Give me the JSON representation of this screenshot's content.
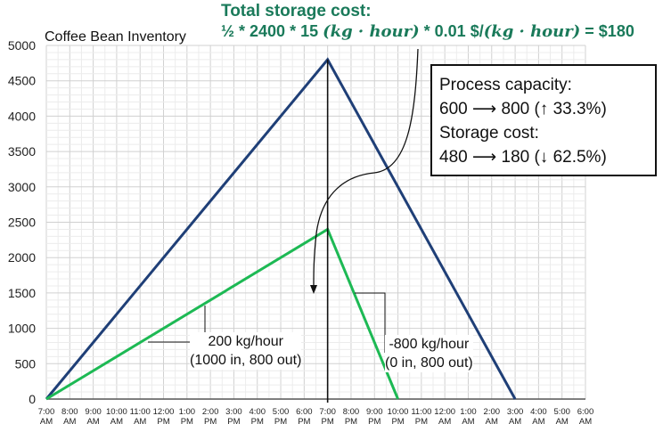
{
  "heading": {
    "title": "Total storage cost:",
    "formula_start": "½ * 2400 * 15 ",
    "formula_unit1": "(kg · hour)",
    "formula_mid": " * 0.01 $/",
    "formula_unit2": "(kg · hour)",
    "formula_end": " = $180"
  },
  "infobox": {
    "line1": "Process capacity:",
    "line2": "600 ⟶ 800 (↑ 33.3%)",
    "line3": "Storage cost:",
    "line4": "480 ⟶ 180 (↓ 62.5%)"
  },
  "annotations": {
    "green_rate": "200 kg/hour",
    "green_detail": "(1000 in, 800 out)",
    "red_rate": "-800 kg/hour",
    "red_detail": "(0 in, 800 out)"
  },
  "chart_data": {
    "type": "line",
    "title": "Coffee Bean Inventory",
    "x_ticks": [
      "7:00 AM",
      "8:00 AM",
      "9:00 AM",
      "10:00 AM",
      "11:00 AM",
      "12:00 PM",
      "1:00 PM",
      "2:00 PM",
      "3:00 PM",
      "4:00 PM",
      "5:00 PM",
      "6:00 PM",
      "7:00 PM",
      "8:00 PM",
      "9:00 PM",
      "10:00 PM",
      "11:00 PM",
      "12:00 AM",
      "1:00 AM",
      "2:00 AM",
      "3:00 AM",
      "4:00 AM",
      "5:00 AM",
      "6:00 AM"
    ],
    "y_ticks": [
      0,
      500,
      1000,
      1500,
      2000,
      2500,
      3000,
      3500,
      4000,
      4500,
      5000
    ],
    "ylim": [
      0,
      5000
    ],
    "grid": true,
    "series": [
      {
        "color": "#1f3f77",
        "x": [
          "7:00 AM",
          "7:00 PM",
          "3:00 AM"
        ],
        "y": [
          0,
          4800,
          0
        ]
      },
      {
        "color": "#1db954",
        "x": [
          "7:00 AM",
          "7:00 PM",
          "10:00 PM"
        ],
        "y": [
          0,
          2400,
          0
        ]
      }
    ]
  },
  "colors": {
    "heading": "#1a7a5a",
    "blue_series": "#1f3f77",
    "green_series": "#1db954",
    "major_grid": "#d0d0d0",
    "minor_grid": "#ececec"
  }
}
